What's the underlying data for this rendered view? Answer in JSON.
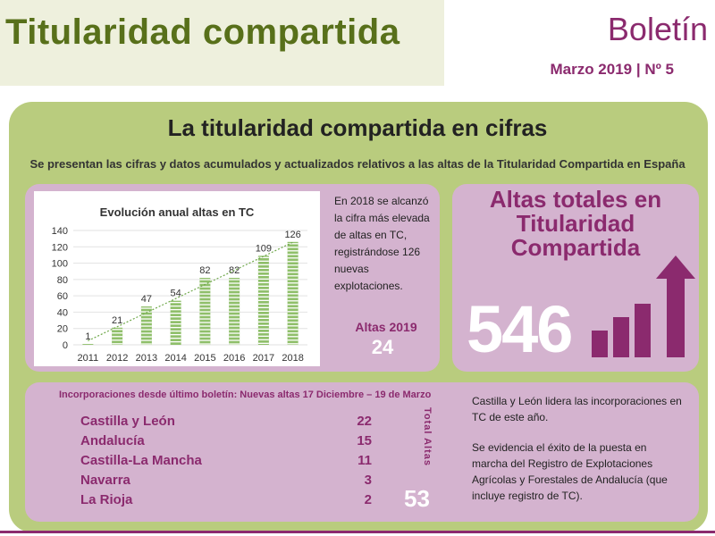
{
  "header": {
    "title": "Titularidad compartida",
    "boletin": "Boletín",
    "date": "Marzo 2019 | Nº 5"
  },
  "panel": {
    "title": "La titularidad compartida en cifras",
    "subtitle": "Se presentan las cifras y datos acumulados y actualizados relativos a las altas de la Titularidad Compartida en España"
  },
  "chart_data": {
    "type": "bar",
    "title": "Evolución anual  altas en TC",
    "categories": [
      "2011",
      "2012",
      "2013",
      "2014",
      "2015",
      "2016",
      "2017",
      "2018"
    ],
    "values": [
      1,
      21,
      47,
      54,
      82,
      82,
      109,
      126
    ],
    "ylim": [
      0,
      140
    ],
    "yticks": [
      "0",
      "20",
      "40",
      "60",
      "80",
      "100",
      "120",
      "140"
    ],
    "trendline": true,
    "bar_color": "#8fbf6a",
    "grid": true
  },
  "chart_note": "En 2018 se alcanzó la cifra más elevada de altas en TC, registrándose 126 nuevas explotaciones.",
  "altas2019": {
    "label": "Altas 2019",
    "value": "24"
  },
  "total": {
    "title": "Altas totales en Titularidad Compartida",
    "number": "546",
    "growth_bars": [
      0.3,
      0.45,
      0.6,
      0.8
    ]
  },
  "incorporations": {
    "heading": "Incorporaciones desde último boletín: Nuevas altas 17 Diciembre – 19 de Marzo",
    "regions": [
      {
        "name": "Castilla y León",
        "value": "22"
      },
      {
        "name": "Andalucía",
        "value": "15"
      },
      {
        "name": "Castilla-La Mancha",
        "value": "11"
      },
      {
        "name": "Navarra",
        "value": "3"
      },
      {
        "name": "La Rioja",
        "value": "2"
      }
    ],
    "total_label": "Total Altas",
    "total_value": "53"
  },
  "side": {
    "p1": "Castilla y León lidera las incorporaciones en TC  de este año.",
    "p2": "Se evidencia el éxito de la puesta en marcha del Registro de Explotaciones Agrícolas y Forestales de Andalucía (que incluye registro de TC)."
  },
  "colors": {
    "green_title": "#58701a",
    "purple": "#8b2a6e",
    "panel_green": "#b9cc7e",
    "box_pink": "#d4b3cf"
  }
}
